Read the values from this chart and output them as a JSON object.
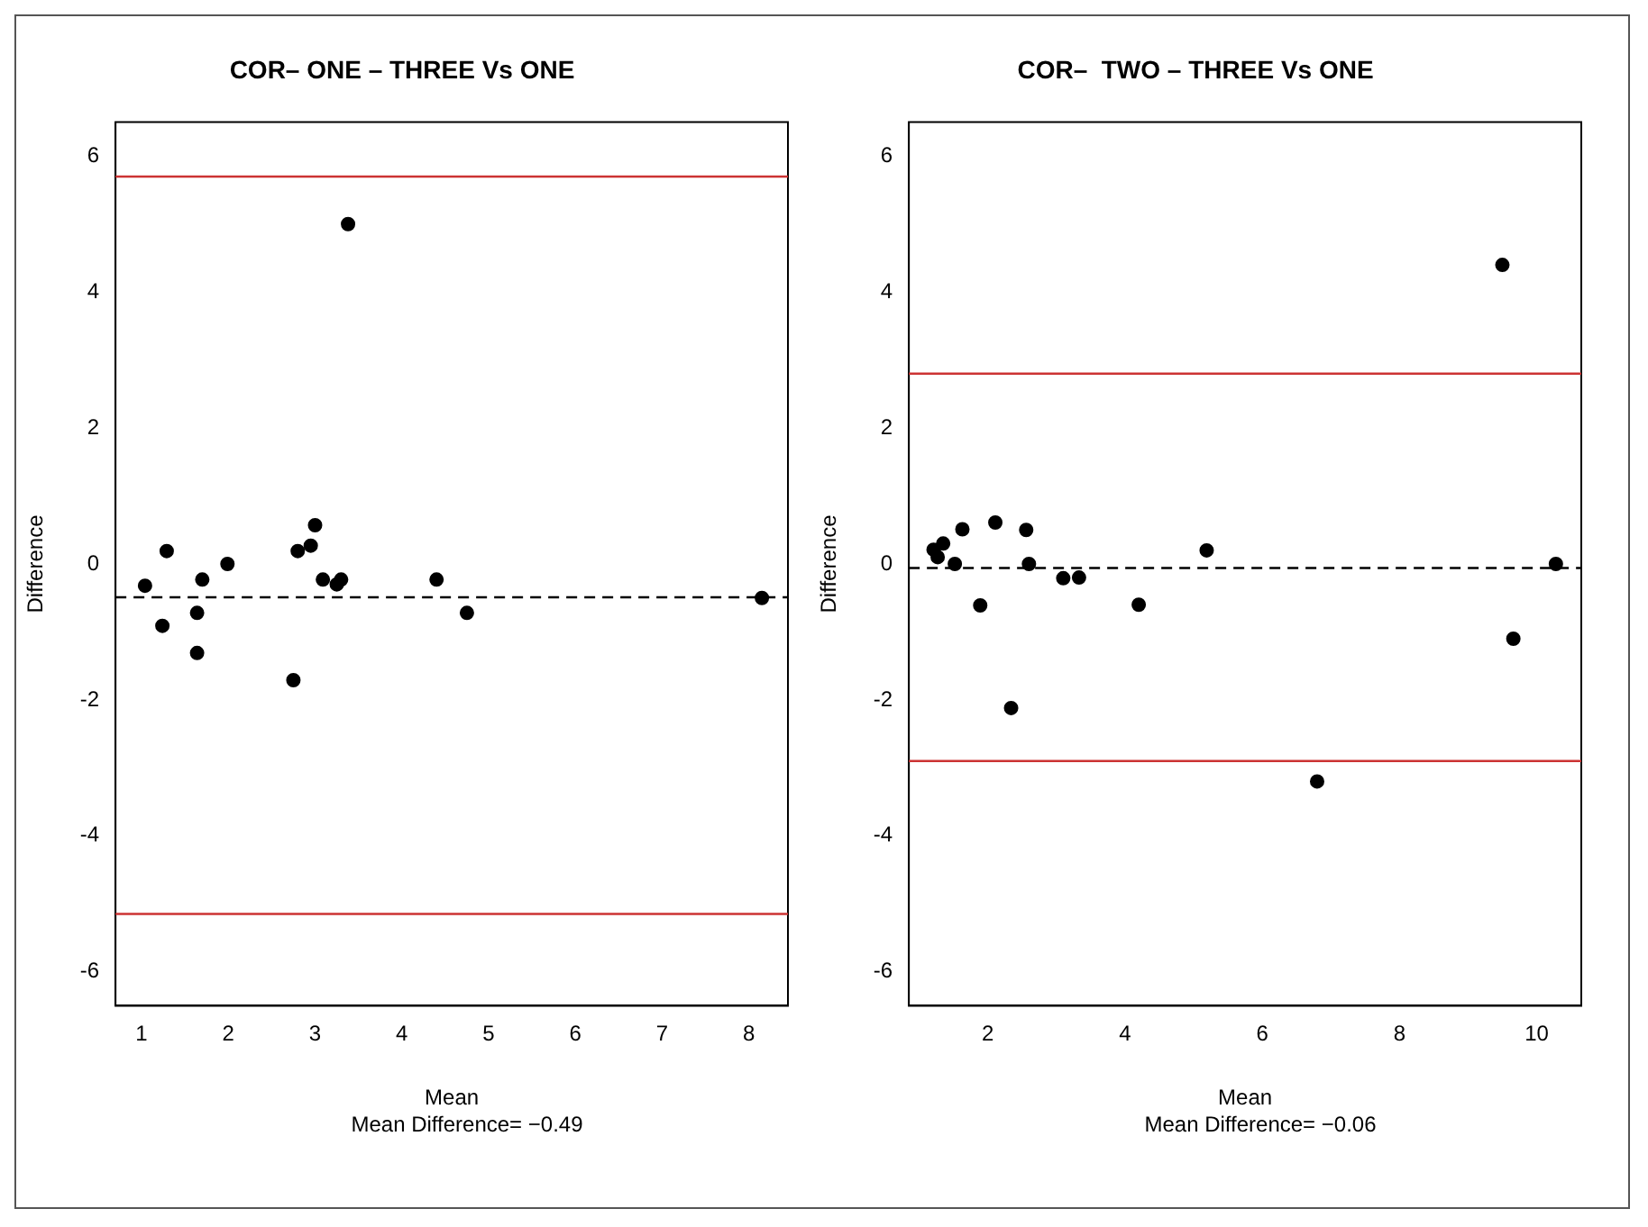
{
  "chart_data": [
    {
      "type": "scatter",
      "title": "COR– ONE – THREE Vs ONE",
      "xlabel": "Mean",
      "ylabel": "Difference",
      "annotations": [
        "Mean Difference=  −0.49"
      ],
      "x": [
        1.04,
        1.24,
        1.29,
        1.64,
        1.64,
        1.7,
        1.99,
        2.75,
        2.8,
        2.95,
        3.0,
        3.09,
        3.25,
        3.3,
        3.38,
        4.4,
        4.75,
        8.15
      ],
      "series": [
        {
          "color": "#000000",
          "values": [
            -0.32,
            -0.91,
            0.19,
            -0.72,
            -1.31,
            -0.23,
            0.0,
            -1.71,
            0.19,
            0.27,
            0.57,
            -0.23,
            -0.3,
            -0.23,
            5.0,
            -0.23,
            -0.72,
            -0.5
          ]
        }
      ],
      "xlim": [
        0.7,
        8.45
      ],
      "xticks": [
        1,
        2,
        3,
        4,
        5,
        6,
        7,
        8
      ],
      "ylim": [
        -6.5,
        6.5
      ],
      "yticks": [
        -6,
        -4,
        -2,
        0,
        2,
        4,
        6
      ],
      "grid": false,
      "legend": false,
      "marker": "circle",
      "ref_lines": [
        {
          "axis": "y",
          "value": -0.49,
          "color": "#000000",
          "line_style": "dashed"
        },
        {
          "axis": "y",
          "value": 5.7,
          "color": "#cc3333",
          "line_style": "solid"
        },
        {
          "axis": "y",
          "value": -5.15,
          "color": "#cc3333",
          "line_style": "solid"
        }
      ]
    },
    {
      "type": "scatter",
      "title": "COR–  TWO – THREE Vs ONE",
      "xlabel": "Mean",
      "ylabel": "Difference",
      "annotations": [
        "Mean Difference=  −0.06"
      ],
      "x": [
        1.21,
        1.27,
        1.35,
        1.52,
        1.63,
        1.89,
        2.11,
        2.34,
        2.56,
        2.6,
        3.1,
        3.33,
        4.2,
        5.19,
        6.8,
        9.5,
        9.66,
        10.28
      ],
      "series": [
        {
          "color": "#000000",
          "values": [
            0.21,
            0.1,
            0.3,
            0.0,
            0.51,
            -0.61,
            0.61,
            -2.12,
            0.5,
            0.0,
            -0.21,
            -0.2,
            -0.6,
            0.2,
            -3.2,
            4.4,
            -1.1,
            0.0
          ]
        }
      ],
      "xlim": [
        0.85,
        10.65
      ],
      "xticks": [
        2,
        4,
        6,
        8,
        10
      ],
      "ylim": [
        -6.5,
        6.5
      ],
      "yticks": [
        -6,
        -4,
        -2,
        0,
        2,
        4,
        6
      ],
      "grid": false,
      "legend": false,
      "marker": "circle",
      "ref_lines": [
        {
          "axis": "y",
          "value": -0.06,
          "color": "#000000",
          "line_style": "dashed"
        },
        {
          "axis": "y",
          "value": 2.8,
          "color": "#cc3333",
          "line_style": "solid"
        },
        {
          "axis": "y",
          "value": -2.9,
          "color": "#cc3333",
          "line_style": "solid"
        }
      ]
    }
  ]
}
